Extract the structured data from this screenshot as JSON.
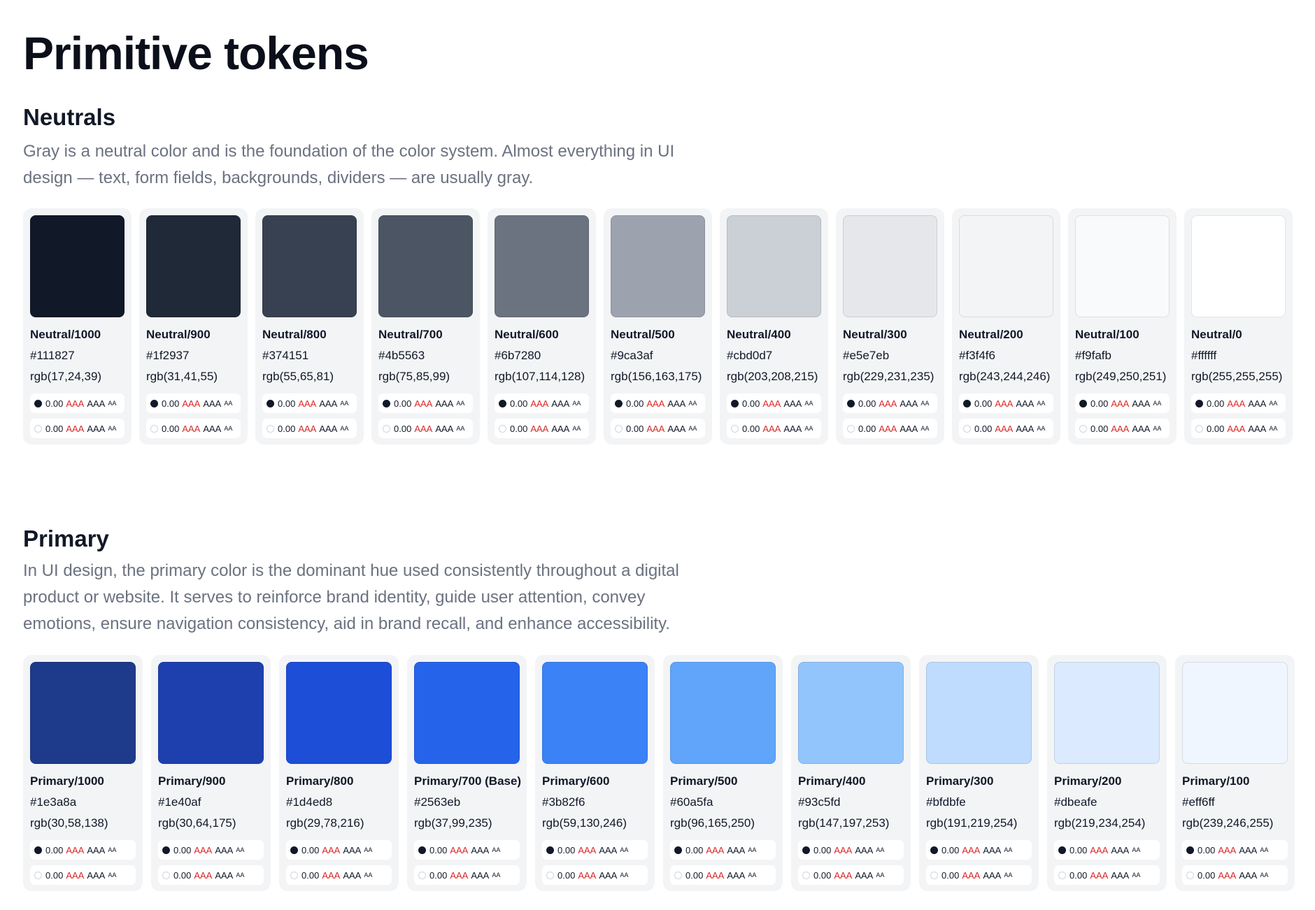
{
  "page": {
    "title": "Primitive tokens"
  },
  "sections": {
    "neutrals": {
      "title": "Neutrals",
      "description": "Gray is a neutral color and is the foundation of the color system. Almost everything in UI design — text, form fields, backgrounds, dividers — are usually gray.",
      "tokens": [
        {
          "name": "Neutral/1000",
          "hex": "#111827",
          "rgb": "rgb(17,24,39)",
          "contrast": [
            {
              "ratio": "0.00",
              "fail_label": "AAA",
              "pass_label": "AAA",
              "small_label": "AA"
            },
            {
              "ratio": "0.00",
              "fail_label": "AAA",
              "pass_label": "AAA",
              "small_label": "AA"
            }
          ]
        },
        {
          "name": "Neutral/900",
          "hex": "#1f2937",
          "rgb": "rgb(31,41,55)",
          "contrast": [
            {
              "ratio": "0.00",
              "fail_label": "AAA",
              "pass_label": "AAA",
              "small_label": "AA"
            },
            {
              "ratio": "0.00",
              "fail_label": "AAA",
              "pass_label": "AAA",
              "small_label": "AA"
            }
          ]
        },
        {
          "name": "Neutral/800",
          "hex": "#374151",
          "rgb": "rgb(55,65,81)",
          "contrast": [
            {
              "ratio": "0.00",
              "fail_label": "AAA",
              "pass_label": "AAA",
              "small_label": "AA"
            },
            {
              "ratio": "0.00",
              "fail_label": "AAA",
              "pass_label": "AAA",
              "small_label": "AA"
            }
          ]
        },
        {
          "name": "Neutral/700",
          "hex": "#4b5563",
          "rgb": "rgb(75,85,99)",
          "contrast": [
            {
              "ratio": "0.00",
              "fail_label": "AAA",
              "pass_label": "AAA",
              "small_label": "AA"
            },
            {
              "ratio": "0.00",
              "fail_label": "AAA",
              "pass_label": "AAA",
              "small_label": "AA"
            }
          ]
        },
        {
          "name": "Neutral/600",
          "hex": "#6b7280",
          "rgb": "rgb(107,114,128)",
          "contrast": [
            {
              "ratio": "0.00",
              "fail_label": "AAA",
              "pass_label": "AAA",
              "small_label": "AA"
            },
            {
              "ratio": "0.00",
              "fail_label": "AAA",
              "pass_label": "AAA",
              "small_label": "AA"
            }
          ]
        },
        {
          "name": "Neutral/500",
          "hex": "#9ca3af",
          "rgb": "rgb(156,163,175)",
          "contrast": [
            {
              "ratio": "0.00",
              "fail_label": "AAA",
              "pass_label": "AAA",
              "small_label": "AA"
            },
            {
              "ratio": "0.00",
              "fail_label": "AAA",
              "pass_label": "AAA",
              "small_label": "AA"
            }
          ]
        },
        {
          "name": "Neutral/400",
          "hex": "#cbd0d7",
          "rgb": "rgb(203,208,215)",
          "contrast": [
            {
              "ratio": "0.00",
              "fail_label": "AAA",
              "pass_label": "AAA",
              "small_label": "AA"
            },
            {
              "ratio": "0.00",
              "fail_label": "AAA",
              "pass_label": "AAA",
              "small_label": "AA"
            }
          ]
        },
        {
          "name": "Neutral/300",
          "hex": "#e5e7eb",
          "rgb": "rgb(229,231,235)",
          "contrast": [
            {
              "ratio": "0.00",
              "fail_label": "AAA",
              "pass_label": "AAA",
              "small_label": "AA"
            },
            {
              "ratio": "0.00",
              "fail_label": "AAA",
              "pass_label": "AAA",
              "small_label": "AA"
            }
          ]
        },
        {
          "name": "Neutral/200",
          "hex": "#f3f4f6",
          "rgb": "rgb(243,244,246)",
          "contrast": [
            {
              "ratio": "0.00",
              "fail_label": "AAA",
              "pass_label": "AAA",
              "small_label": "AA"
            },
            {
              "ratio": "0.00",
              "fail_label": "AAA",
              "pass_label": "AAA",
              "small_label": "AA"
            }
          ]
        },
        {
          "name": "Neutral/100",
          "hex": "#f9fafb",
          "rgb": "rgb(249,250,251)",
          "contrast": [
            {
              "ratio": "0.00",
              "fail_label": "AAA",
              "pass_label": "AAA",
              "small_label": "AA"
            },
            {
              "ratio": "0.00",
              "fail_label": "AAA",
              "pass_label": "AAA",
              "small_label": "AA"
            }
          ]
        },
        {
          "name": "Neutral/0",
          "hex": "#ffffff",
          "rgb": "rgb(255,255,255)",
          "contrast": [
            {
              "ratio": "0.00",
              "fail_label": "AAA",
              "pass_label": "AAA",
              "small_label": "AA"
            },
            {
              "ratio": "0.00",
              "fail_label": "AAA",
              "pass_label": "AAA",
              "small_label": "AA"
            }
          ]
        }
      ]
    },
    "primary": {
      "title": "Primary",
      "description": "In UI design, the primary color is the dominant hue used consistently throughout a digital product or website. It serves to reinforce brand identity, guide user attention, convey emotions, ensure navigation consistency, aid in brand recall, and enhance accessibility.",
      "tokens": [
        {
          "name": "Primary/1000",
          "hex": "#1e3a8a",
          "rgb": "rgb(30,58,138)",
          "contrast": [
            {
              "ratio": "0.00",
              "fail_label": "AAA",
              "pass_label": "AAA",
              "small_label": "AA"
            },
            {
              "ratio": "0.00",
              "fail_label": "AAA",
              "pass_label": "AAA",
              "small_label": "AA"
            }
          ]
        },
        {
          "name": "Primary/900",
          "hex": "#1e40af",
          "rgb": "rgb(30,64,175)",
          "contrast": [
            {
              "ratio": "0.00",
              "fail_label": "AAA",
              "pass_label": "AAA",
              "small_label": "AA"
            },
            {
              "ratio": "0.00",
              "fail_label": "AAA",
              "pass_label": "AAA",
              "small_label": "AA"
            }
          ]
        },
        {
          "name": "Primary/800",
          "hex": "#1d4ed8",
          "rgb": "rgb(29,78,216)",
          "contrast": [
            {
              "ratio": "0.00",
              "fail_label": "AAA",
              "pass_label": "AAA",
              "small_label": "AA"
            },
            {
              "ratio": "0.00",
              "fail_label": "AAA",
              "pass_label": "AAA",
              "small_label": "AA"
            }
          ]
        },
        {
          "name": "Primary/700 (Base)",
          "hex": "#2563eb",
          "rgb": "rgb(37,99,235)",
          "contrast": [
            {
              "ratio": "0.00",
              "fail_label": "AAA",
              "pass_label": "AAA",
              "small_label": "AA"
            },
            {
              "ratio": "0.00",
              "fail_label": "AAA",
              "pass_label": "AAA",
              "small_label": "AA"
            }
          ]
        },
        {
          "name": "Primary/600",
          "hex": "#3b82f6",
          "rgb": "rgb(59,130,246)",
          "contrast": [
            {
              "ratio": "0.00",
              "fail_label": "AAA",
              "pass_label": "AAA",
              "small_label": "AA"
            },
            {
              "ratio": "0.00",
              "fail_label": "AAA",
              "pass_label": "AAA",
              "small_label": "AA"
            }
          ]
        },
        {
          "name": "Primary/500",
          "hex": "#60a5fa",
          "rgb": "rgb(96,165,250)",
          "contrast": [
            {
              "ratio": "0.00",
              "fail_label": "AAA",
              "pass_label": "AAA",
              "small_label": "AA"
            },
            {
              "ratio": "0.00",
              "fail_label": "AAA",
              "pass_label": "AAA",
              "small_label": "AA"
            }
          ]
        },
        {
          "name": "Primary/400",
          "hex": "#93c5fd",
          "rgb": "rgb(147,197,253)",
          "contrast": [
            {
              "ratio": "0.00",
              "fail_label": "AAA",
              "pass_label": "AAA",
              "small_label": "AA"
            },
            {
              "ratio": "0.00",
              "fail_label": "AAA",
              "pass_label": "AAA",
              "small_label": "AA"
            }
          ]
        },
        {
          "name": "Primary/300",
          "hex": "#bfdbfe",
          "rgb": "rgb(191,219,254)",
          "contrast": [
            {
              "ratio": "0.00",
              "fail_label": "AAA",
              "pass_label": "AAA",
              "small_label": "AA"
            },
            {
              "ratio": "0.00",
              "fail_label": "AAA",
              "pass_label": "AAA",
              "small_label": "AA"
            }
          ]
        },
        {
          "name": "Primary/200",
          "hex": "#dbeafe",
          "rgb": "rgb(219,234,254)",
          "contrast": [
            {
              "ratio": "0.00",
              "fail_label": "AAA",
              "pass_label": "AAA",
              "small_label": "AA"
            },
            {
              "ratio": "0.00",
              "fail_label": "AAA",
              "pass_label": "AAA",
              "small_label": "AA"
            }
          ]
        },
        {
          "name": "Primary/100",
          "hex": "#eff6ff",
          "rgb": "rgb(239,246,255)",
          "contrast": [
            {
              "ratio": "0.00",
              "fail_label": "AAA",
              "pass_label": "AAA",
              "small_label": "AA"
            },
            {
              "ratio": "0.00",
              "fail_label": "AAA",
              "pass_label": "AAA",
              "small_label": "AA"
            }
          ]
        }
      ]
    }
  }
}
